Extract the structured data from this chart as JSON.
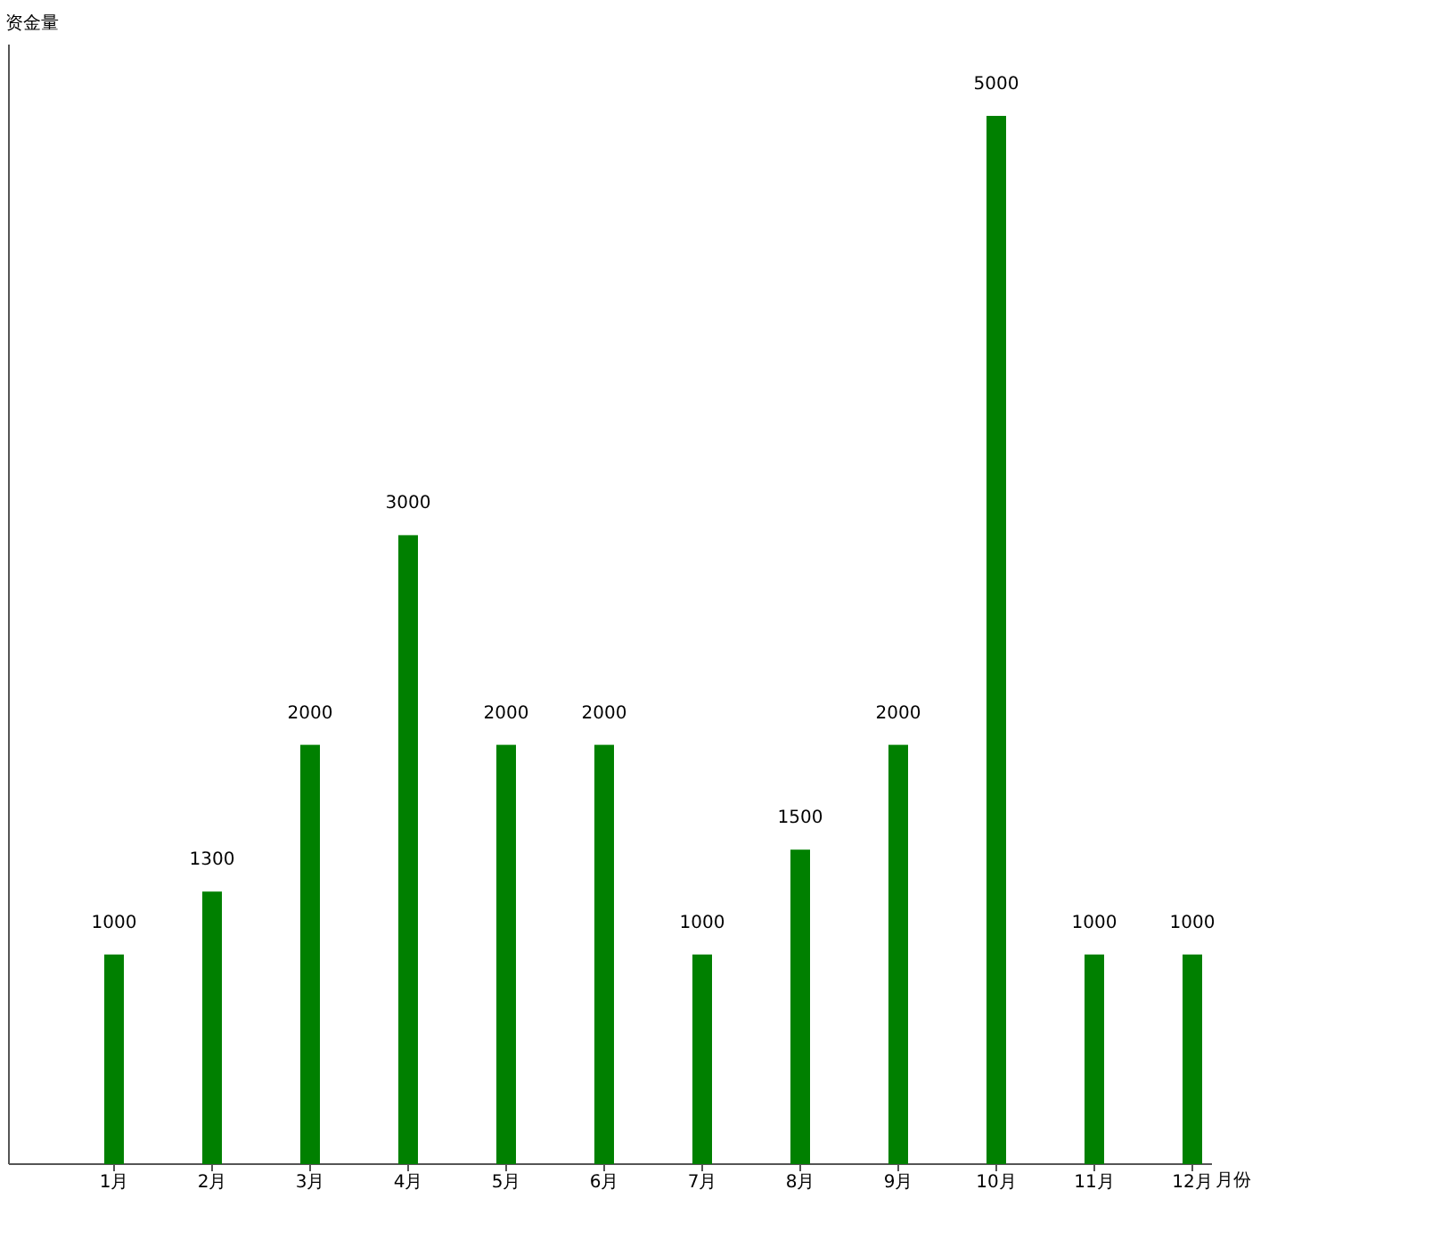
{
  "chart_data": {
    "type": "bar",
    "xlabel": "月份",
    "ylabel": "资金量",
    "categories": [
      "1月",
      "2月",
      "3月",
      "4月",
      "5月",
      "6月",
      "7月",
      "8月",
      "9月",
      "10月",
      "11月",
      "12月"
    ],
    "series": [
      {
        "color": "#008000",
        "values": [
          1000,
          1300,
          2000,
          3000,
          2000,
          2000,
          1000,
          1500,
          2000,
          5000,
          1000,
          1000
        ]
      }
    ],
    "data_labels": true
  }
}
